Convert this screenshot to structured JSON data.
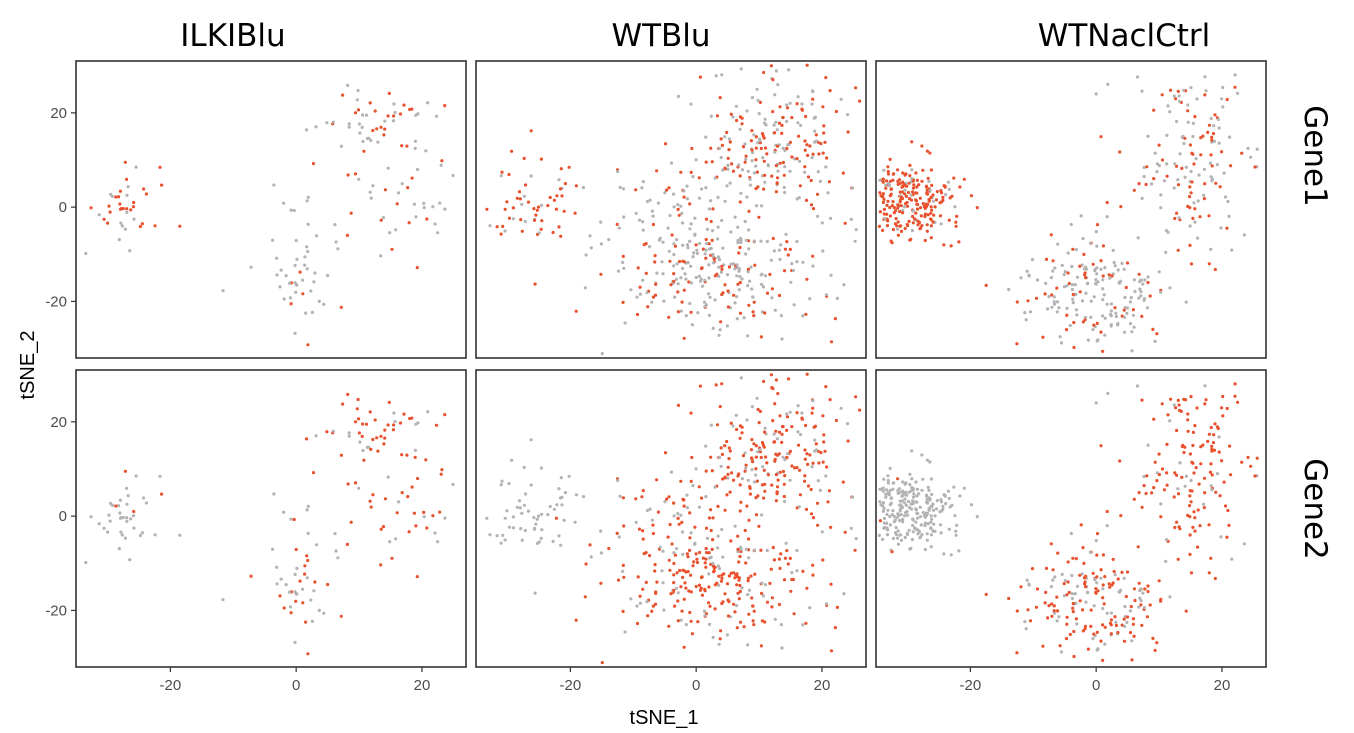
{
  "chart_data": {
    "type": "scatter",
    "xlabel": "tSNE_1",
    "ylabel": "tSNE_2",
    "xlim": [
      -35,
      27
    ],
    "ylim": [
      -32,
      31
    ],
    "x_ticks": [
      -20,
      0,
      20
    ],
    "y_ticks": [
      20,
      0,
      -20
    ],
    "columns": [
      "ILKIBlu",
      "WTBlu",
      "WTNaclCtrl"
    ],
    "rows": [
      "Gene1",
      "Gene2"
    ],
    "grid": false,
    "legend": "none",
    "colors": {
      "expressed": "#e8512e",
      "not_expressed": "#b3b3b3"
    },
    "panels": [
      {
        "column": "ILKIBlu",
        "row": "Gene1",
        "clusters": [
          {
            "cx": -27,
            "cy": 1,
            "sx": 3.5,
            "sy": 4,
            "n": 40,
            "high_frac": 0.6
          },
          {
            "cx": 12,
            "cy": 19,
            "sx": 5,
            "sy": 4,
            "n": 55,
            "high_frac": 0.45
          },
          {
            "cx": 17,
            "cy": 2,
            "sx": 5,
            "sy": 9,
            "n": 40,
            "high_frac": 0.2
          },
          {
            "cx": 1,
            "cy": -14,
            "sx": 4,
            "sy": 7,
            "n": 50,
            "high_frac": 0.15
          }
        ]
      },
      {
        "column": "WTBlu",
        "row": "Gene1",
        "clusters": [
          {
            "cx": -25,
            "cy": 0,
            "sx": 4,
            "sy": 5,
            "n": 60,
            "high_frac": 0.75
          },
          {
            "cx": 12,
            "cy": 12,
            "sx": 7,
            "sy": 8,
            "n": 260,
            "high_frac": 0.55
          },
          {
            "cx": 3,
            "cy": -15,
            "sx": 8,
            "sy": 6,
            "n": 240,
            "high_frac": 0.3
          },
          {
            "cx": -2,
            "cy": 0,
            "sx": 6,
            "sy": 7,
            "n": 80,
            "high_frac": 0.35
          }
        ]
      },
      {
        "column": "WTNaclCtrl",
        "row": "Gene1",
        "clusters": [
          {
            "cx": -30,
            "cy": 1,
            "sx": 4,
            "sy": 4,
            "n": 260,
            "high_frac": 0.85
          },
          {
            "cx": 15,
            "cy": 10,
            "sx": 5,
            "sy": 10,
            "n": 160,
            "high_frac": 0.35
          },
          {
            "cx": 0,
            "cy": -18,
            "sx": 6,
            "sy": 6,
            "n": 200,
            "high_frac": 0.25
          }
        ]
      },
      {
        "column": "ILKIBlu",
        "row": "Gene2",
        "clusters": [
          {
            "cx": -27,
            "cy": 1,
            "sx": 3.5,
            "sy": 4,
            "n": 40,
            "high_frac": 0.02
          },
          {
            "cx": 12,
            "cy": 19,
            "sx": 5,
            "sy": 4,
            "n": 55,
            "high_frac": 0.75
          },
          {
            "cx": 17,
            "cy": 2,
            "sx": 5,
            "sy": 9,
            "n": 40,
            "high_frac": 0.55
          },
          {
            "cx": 1,
            "cy": -14,
            "sx": 4,
            "sy": 7,
            "n": 50,
            "high_frac": 0.5
          }
        ]
      },
      {
        "column": "WTBlu",
        "row": "Gene2",
        "clusters": [
          {
            "cx": -25,
            "cy": 0,
            "sx": 4,
            "sy": 5,
            "n": 60,
            "high_frac": 0.03
          },
          {
            "cx": 12,
            "cy": 12,
            "sx": 7,
            "sy": 8,
            "n": 260,
            "high_frac": 0.8
          },
          {
            "cx": 3,
            "cy": -15,
            "sx": 8,
            "sy": 6,
            "n": 240,
            "high_frac": 0.75
          },
          {
            "cx": -2,
            "cy": 0,
            "sx": 6,
            "sy": 7,
            "n": 80,
            "high_frac": 0.6
          }
        ]
      },
      {
        "column": "WTNaclCtrl",
        "row": "Gene2",
        "clusters": [
          {
            "cx": -30,
            "cy": 1,
            "sx": 4,
            "sy": 4,
            "n": 260,
            "high_frac": 0.02
          },
          {
            "cx": 15,
            "cy": 10,
            "sx": 5,
            "sy": 10,
            "n": 160,
            "high_frac": 0.85
          },
          {
            "cx": 0,
            "cy": -18,
            "sx": 6,
            "sy": 6,
            "n": 200,
            "high_frac": 0.7
          }
        ]
      }
    ]
  }
}
